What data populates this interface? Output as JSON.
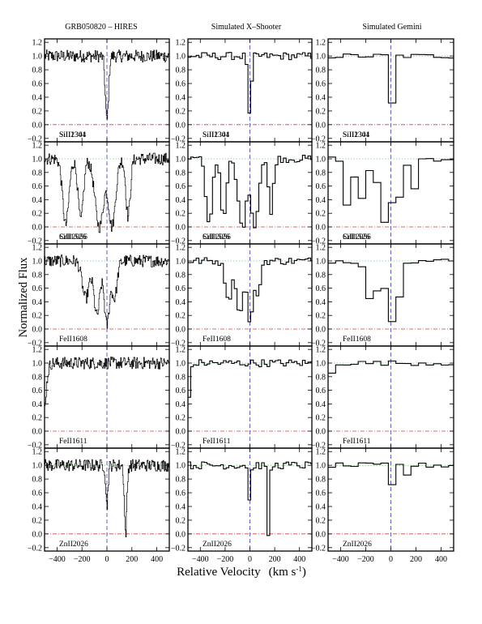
{
  "chart_data": {
    "type": "line",
    "ylabel": "Normalized Flux",
    "xlabel": "Relative Velocity",
    "xlabel_unit": "(km s",
    "xlabel_unit_sup": "-1",
    "xlabel_unit_close": ")",
    "columns": [
      "GRB050820 – HIRES",
      "Simulated X–Shooter",
      "Simulated Gemini"
    ],
    "rows": [
      "SiII1304",
      "SiII1526",
      "FeII1608",
      "FeII1611",
      "ZnII2026"
    ],
    "row_label_overlays": [
      "SiII2341",
      "CrII2056",
      "",
      "",
      ""
    ],
    "xlim": [
      -500,
      500
    ],
    "ylim": [
      -0.25,
      1.25
    ],
    "xticks": [
      -400,
      -200,
      0,
      200,
      400
    ],
    "xtick_labels": [
      "−400",
      "−200",
      "0",
      "200",
      "400"
    ],
    "yticks": [
      -0.2,
      0.0,
      0.2,
      0.4,
      0.6,
      0.8,
      1.0,
      1.2
    ],
    "ytick_labels": [
      "−0.2",
      "0.0",
      "0.2",
      "0.4",
      "0.6",
      "0.8",
      "1.0",
      "1.2"
    ],
    "reference_lines": {
      "continuum": 1.0,
      "zero": 0.0,
      "velocity_zero": 0
    },
    "absorption_components": {
      "SiII1304": [
        {
          "v": 0,
          "depth": 0.95,
          "width": 18
        }
      ],
      "SiII1526": [
        {
          "v": -330,
          "depth": 0.97,
          "width": 35
        },
        {
          "v": -210,
          "depth": 0.9,
          "width": 30
        },
        {
          "v": -60,
          "depth": 1.0,
          "width": 50
        },
        {
          "v": 40,
          "depth": 1.0,
          "width": 40
        },
        {
          "v": 170,
          "depth": 0.85,
          "width": 25
        }
      ],
      "FeII1608": [
        {
          "v": -170,
          "depth": 0.55,
          "width": 40
        },
        {
          "v": -80,
          "depth": 0.8,
          "width": 35
        },
        {
          "v": 0,
          "depth": 0.95,
          "width": 30
        },
        {
          "v": 60,
          "depth": 0.55,
          "width": 30
        }
      ],
      "FeII1611": [
        {
          "v": -520,
          "depth": 1.0,
          "width": 35
        }
      ],
      "ZnII2026": [
        {
          "v": 0,
          "depth": 0.6,
          "width": 12
        },
        {
          "v": 150,
          "depth": 1.0,
          "width": 14
        }
      ]
    }
  }
}
